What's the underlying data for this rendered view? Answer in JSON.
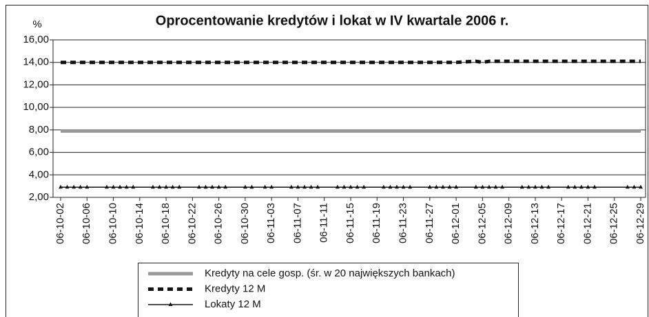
{
  "chart_data": {
    "type": "line",
    "title": "Oprocentowanie kredytów i lokat w IV kwartale 2006 r.",
    "y_label": "%",
    "x": [
      "06-10-02",
      "06-10-03",
      "06-10-04",
      "06-10-05",
      "06-10-06",
      "06-10-09",
      "06-10-10",
      "06-10-11",
      "06-10-12",
      "06-10-13",
      "06-10-16",
      "06-10-17",
      "06-10-18",
      "06-10-19",
      "06-10-20",
      "06-10-23",
      "06-10-24",
      "06-10-25",
      "06-10-26",
      "06-10-27",
      "06-10-30",
      "06-10-31",
      "06-11-02",
      "06-11-03",
      "06-11-06",
      "06-11-07",
      "06-11-08",
      "06-11-09",
      "06-11-10",
      "06-11-13",
      "06-11-14",
      "06-11-15",
      "06-11-16",
      "06-11-17",
      "06-11-20",
      "06-11-21",
      "06-11-22",
      "06-11-23",
      "06-11-24",
      "06-11-27",
      "06-11-28",
      "06-11-29",
      "06-11-30",
      "06-12-01",
      "06-12-04",
      "06-12-05",
      "06-12-06",
      "06-12-07",
      "06-12-08",
      "06-12-11",
      "06-12-12",
      "06-12-13",
      "06-12-14",
      "06-12-15",
      "06-12-18",
      "06-12-19",
      "06-12-20",
      "06-12-21",
      "06-12-22",
      "06-12-27",
      "06-12-28",
      "06-12-29"
    ],
    "series": [
      {
        "name": "Kredyty na cele gosp. (śr. w 20 największych bankach)",
        "color": "#999999",
        "line_style": "solid",
        "line_width": 5,
        "values": [
          7.9,
          7.9,
          7.9,
          7.9,
          7.9,
          7.9,
          7.9,
          7.9,
          7.9,
          7.9,
          7.9,
          7.9,
          7.9,
          7.9,
          7.9,
          7.9,
          7.9,
          7.9,
          7.9,
          7.9,
          7.9,
          7.9,
          7.9,
          7.9,
          7.9,
          7.9,
          7.9,
          7.9,
          7.9,
          7.9,
          7.9,
          7.9,
          7.9,
          7.9,
          7.9,
          7.9,
          7.9,
          7.9,
          7.9,
          7.9,
          7.9,
          7.9,
          7.9,
          7.9,
          7.9,
          7.9,
          7.9,
          7.9,
          7.9,
          7.9,
          7.9,
          7.9,
          7.9,
          7.9,
          7.9,
          7.9,
          7.9,
          7.9,
          7.9,
          7.9,
          7.9,
          7.9
        ]
      },
      {
        "name": "Kredyty 12 M",
        "color": "#111111",
        "line_style": "dashed",
        "line_width": 5,
        "values": [
          14,
          14,
          14,
          14,
          14,
          14,
          14,
          14,
          14,
          14,
          14,
          14,
          14,
          14,
          14,
          14,
          14,
          14,
          14,
          14,
          14,
          14,
          14,
          14,
          14,
          14,
          14,
          14,
          14,
          14,
          14,
          14,
          14,
          14,
          14,
          14,
          14,
          14,
          14,
          14,
          14,
          14,
          14,
          14,
          14.1,
          14,
          14.1,
          14.1,
          14.1,
          14.1,
          14.1,
          14.1,
          14.1,
          14.1,
          14.1,
          14.1,
          14.1,
          14.1,
          14.1,
          14.1,
          14.1,
          14.1
        ]
      },
      {
        "name": "Lokaty 12 M",
        "color": "#111111",
        "line_style": "solid",
        "line_width": 1.5,
        "marker": "triangle",
        "values": [
          2.9,
          2.9,
          2.9,
          2.9,
          2.9,
          2.9,
          2.9,
          2.9,
          2.9,
          2.9,
          2.9,
          2.9,
          2.9,
          2.9,
          2.9,
          2.9,
          2.9,
          2.9,
          2.9,
          2.9,
          2.9,
          2.9,
          2.9,
          2.9,
          2.9,
          2.9,
          2.9,
          2.9,
          2.9,
          2.9,
          2.9,
          2.9,
          2.9,
          2.9,
          2.9,
          2.9,
          2.9,
          2.9,
          2.9,
          2.9,
          2.9,
          2.9,
          2.9,
          2.9,
          2.9,
          2.9,
          2.9,
          2.9,
          2.9,
          2.9,
          2.9,
          2.9,
          2.9,
          2.9,
          2.9,
          2.9,
          2.9,
          2.9,
          2.9,
          2.9,
          2.9,
          2.9
        ]
      }
    ],
    "xlim": [
      "06-10-02",
      "06-12-29"
    ],
    "xticks": [
      "06-10-02",
      "06-10-06",
      "06-10-10",
      "06-10-14",
      "06-10-18",
      "06-10-22",
      "06-10-26",
      "06-10-30",
      "06-11-03",
      "06-11-07",
      "06-11-11",
      "06-11-15",
      "06-11-19",
      "06-11-23",
      "06-11-27",
      "06-12-01",
      "06-12-05",
      "06-12-09",
      "06-12-13",
      "06-12-17",
      "06-12-21",
      "06-12-25",
      "06-12-29"
    ],
    "ylim": [
      2,
      16
    ],
    "yticks": [
      {
        "value": 2,
        "label": "2,00"
      },
      {
        "value": 4,
        "label": "4,00"
      },
      {
        "value": 6,
        "label": "6,00"
      },
      {
        "value": 8,
        "label": "8,00"
      },
      {
        "value": 10,
        "label": "10,00"
      },
      {
        "value": 12,
        "label": "12,00"
      },
      {
        "value": 14,
        "label": "14,00"
      },
      {
        "value": 16,
        "label": "16,00"
      }
    ],
    "grid": true,
    "legend": "bottom"
  }
}
